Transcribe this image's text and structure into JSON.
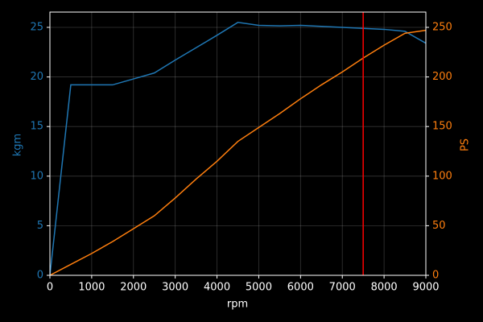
{
  "chart_data": {
    "type": "line",
    "xlabel": "rpm",
    "ylabel": "kgm",
    "y2label": "PS",
    "x": [
      0,
      500,
      1000,
      1500,
      2000,
      2500,
      3000,
      3500,
      4000,
      4500,
      5000,
      5500,
      6000,
      6500,
      7000,
      7500,
      8000,
      8500,
      9000
    ],
    "series": [
      {
        "color": "#1f77b4",
        "axis": "y",
        "values": [
          0,
          19.2,
          19.2,
          19.2,
          19.8,
          20.4,
          21.7,
          22.95,
          24.2,
          25.5,
          25.2,
          25.15,
          25.2,
          25.1,
          25.0,
          24.9,
          24.8,
          24.6,
          23.4
        ]
      },
      {
        "color": "#ff7f0e",
        "axis": "y2",
        "values": [
          0,
          11,
          22,
          34,
          47,
          60,
          78,
          97,
          115,
          135,
          149,
          163,
          178,
          192,
          205,
          219,
          232,
          244,
          247
        ]
      }
    ],
    "vline": {
      "x": 7500,
      "color": "#ff0000"
    },
    "xlim": [
      0,
      9000
    ],
    "xticks": [
      0,
      1000,
      2000,
      3000,
      4000,
      5000,
      6000,
      7000,
      8000,
      9000
    ],
    "ylim": [
      0,
      26.54
    ],
    "yticks": [
      0,
      5,
      10,
      15,
      20,
      25
    ],
    "y2lim": [
      0,
      265.4
    ],
    "y2ticks": [
      0,
      50,
      100,
      150,
      200,
      250
    ],
    "grid": true
  }
}
